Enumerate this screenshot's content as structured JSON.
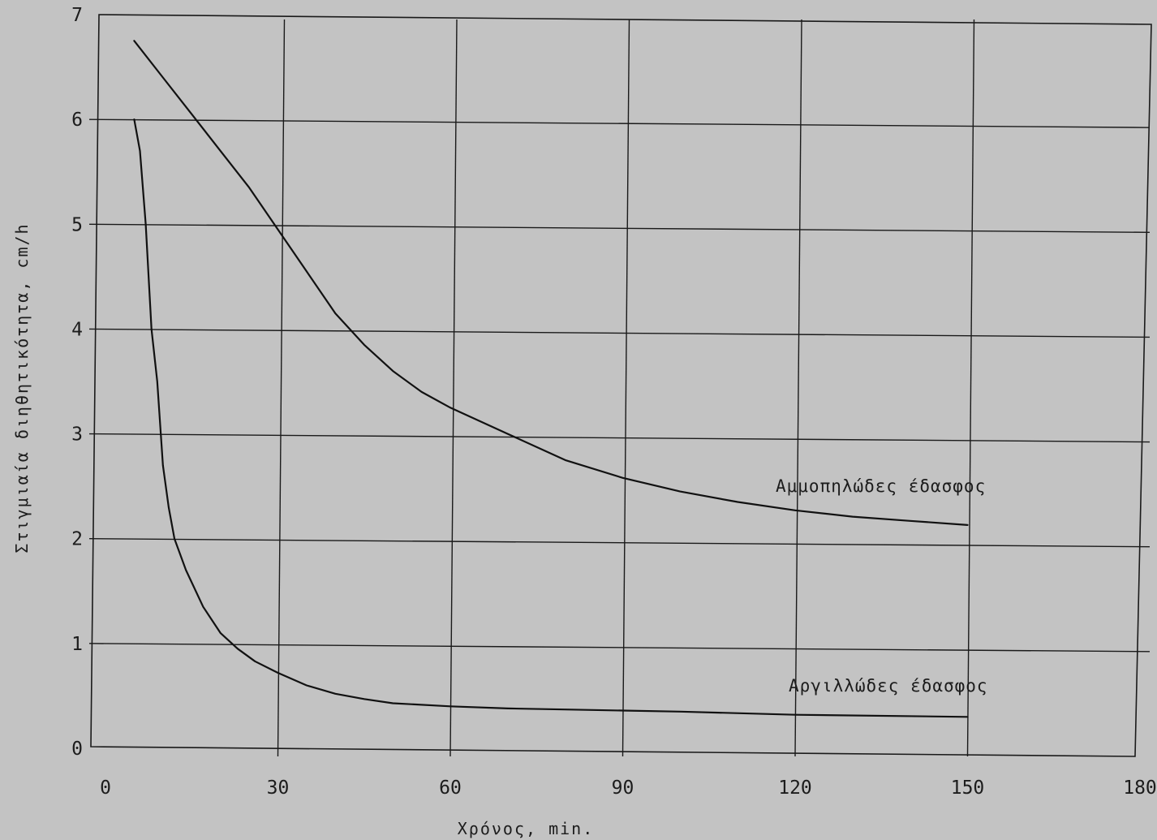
{
  "chart_data": {
    "type": "line",
    "title": "",
    "xlabel": "Χρόνος, min.",
    "ylabel": "Στιγμιαία διηθητικότητα, cm/h",
    "xlim": [
      0,
      180
    ],
    "ylim": [
      0,
      7
    ],
    "x_ticks": [
      "0",
      "30",
      "60",
      "90",
      "120",
      "150",
      "180"
    ],
    "y_ticks": [
      "0",
      "1",
      "2",
      "3",
      "4",
      "5",
      "6",
      "7"
    ],
    "grid": true,
    "series": [
      {
        "name": "Αμμοπηλώδες έδασφος",
        "x": [
          5,
          10,
          15,
          20,
          25,
          30,
          35,
          40,
          45,
          50,
          55,
          60,
          70,
          80,
          90,
          100,
          110,
          120,
          130,
          140,
          150
        ],
        "y": [
          6.75,
          6.4,
          6.05,
          5.7,
          5.35,
          4.95,
          4.55,
          4.15,
          3.85,
          3.6,
          3.4,
          3.25,
          3.0,
          2.75,
          2.58,
          2.45,
          2.35,
          2.27,
          2.21,
          2.17,
          2.13
        ]
      },
      {
        "name": "Αργιλλώδες έδασφος",
        "x": [
          5,
          6,
          7,
          8,
          9,
          10,
          11,
          12,
          14,
          17,
          20,
          23,
          26,
          30,
          35,
          40,
          45,
          50,
          60,
          70,
          80,
          90,
          100,
          120,
          150
        ],
        "y": [
          6.0,
          5.7,
          5.0,
          4.0,
          3.5,
          2.7,
          2.3,
          2.0,
          1.7,
          1.35,
          1.1,
          0.95,
          0.83,
          0.72,
          0.6,
          0.52,
          0.47,
          0.43,
          0.4,
          0.38,
          0.37,
          0.36,
          0.35,
          0.32,
          0.3
        ]
      }
    ]
  }
}
